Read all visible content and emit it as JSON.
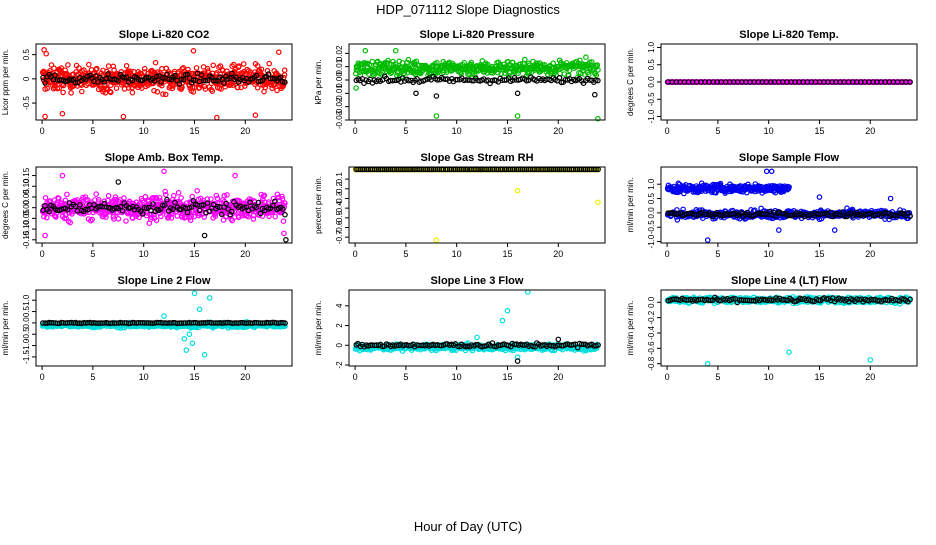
{
  "figure": {
    "title": "HDP_071112  Slope Diagnostics",
    "xlabel": "Hour of Day (UTC)"
  },
  "chart_data": [
    {
      "type": "scatter",
      "title": "Slope Li-820 CO2",
      "ylabel": "Licor ppm per min.",
      "xlim": [
        -0.6,
        24.6
      ],
      "ylim": [
        -0.85,
        0.72
      ],
      "xticks": [
        0,
        5,
        10,
        15,
        20
      ],
      "yticks": [
        -0.5,
        0,
        0.5
      ],
      "ytick_labels": [
        "-0.5",
        "0",
        "0.5"
      ],
      "series": [
        {
          "color": "#ff0000",
          "x_start": 0.05,
          "x_end": 23.9,
          "n": 620,
          "center": 0.0,
          "spread": 0.25,
          "outliers": [
            [
              0.2,
              0.6
            ],
            [
              0.4,
              0.52
            ],
            [
              0.3,
              -0.78
            ],
            [
              2.0,
              -0.72
            ],
            [
              8.0,
              -0.78
            ],
            [
              17.2,
              -0.8
            ],
            [
              21.0,
              -0.75
            ],
            [
              14.9,
              0.58
            ],
            [
              23.3,
              0.55
            ]
          ]
        },
        {
          "color": "#000000",
          "x_start": 0.1,
          "x_end": 23.9,
          "n": 120,
          "center": 0.0,
          "spread": 0.09,
          "outliers": []
        }
      ]
    },
    {
      "type": "scatter",
      "title": "Slope Li-820 Pressure",
      "ylabel": "kPa per min.",
      "xlim": [
        -0.6,
        24.6
      ],
      "ylim": [
        -0.03,
        0.027
      ],
      "xticks": [
        0,
        5,
        10,
        15,
        20
      ],
      "yticks": [
        -0.03,
        -0.02,
        -0.01,
        0.0,
        0.01,
        0.02
      ],
      "ytick_labels": [
        "-0.03",
        "-0.02",
        "-0.01",
        "0.00",
        "0.01",
        "0.02"
      ],
      "series": [
        {
          "color": "#00bb00",
          "x_start": 0.05,
          "x_end": 23.9,
          "n": 450,
          "center": 0.009,
          "spread": 0.0055,
          "outliers": [
            [
              0.1,
              -0.006
            ],
            [
              8.0,
              -0.027
            ],
            [
              16.0,
              -0.027
            ],
            [
              23.9,
              -0.029
            ],
            [
              1.0,
              0.022
            ],
            [
              4.0,
              0.022
            ]
          ]
        },
        {
          "color": "#000000",
          "x_start": 0.1,
          "x_end": 23.9,
          "n": 120,
          "center": 0.0,
          "spread": 0.002,
          "outliers": [
            [
              6.0,
              -0.01
            ],
            [
              8.0,
              -0.012
            ],
            [
              16.0,
              -0.01
            ],
            [
              23.6,
              -0.011
            ]
          ]
        }
      ]
    },
    {
      "type": "scatter",
      "title": "Slope Li-820 Temp.",
      "ylabel": "degrees C per min.",
      "xlim": [
        -0.6,
        24.6
      ],
      "ylim": [
        -1.1,
        1.1
      ],
      "xticks": [
        0,
        5,
        10,
        15,
        20
      ],
      "yticks": [
        -1.0,
        -0.5,
        0.0,
        0.5,
        1.0
      ],
      "ytick_labels": [
        "-1.0",
        "-0.5",
        "0.0",
        "0.5",
        "1.0"
      ],
      "series": [
        {
          "color": "#ff00ff",
          "x_start": 0.05,
          "x_end": 23.9,
          "n": 400,
          "center": 0.0,
          "spread": 0.0,
          "outliers": []
        },
        {
          "color": "#000000",
          "x_start": 0.1,
          "x_end": 23.9,
          "n": 60,
          "center": 0.0,
          "spread": 0.0,
          "outliers": []
        }
      ]
    },
    {
      "type": "scatter",
      "title": "Slope Amb. Box Temp.",
      "ylabel": "degrees C per min.",
      "xlim": [
        -0.6,
        24.6
      ],
      "ylim": [
        -0.165,
        0.19
      ],
      "xticks": [
        0,
        5,
        10,
        15,
        20
      ],
      "yticks": [
        -0.15,
        -0.1,
        -0.05,
        0.0,
        0.05,
        0.1,
        0.15
      ],
      "ytick_labels": [
        "-0.15",
        "-0.10",
        "-0.05",
        "0.00",
        "0.05",
        "0.10",
        "0.15"
      ],
      "series": [
        {
          "color": "#ff00ff",
          "x_start": 0.05,
          "x_end": 23.9,
          "n": 600,
          "center": 0.0,
          "spread": 0.055,
          "outliers": [
            [
              2.0,
              0.15
            ],
            [
              12.0,
              0.17
            ],
            [
              19.0,
              0.15
            ],
            [
              0.3,
              -0.13
            ],
            [
              23.8,
              -0.12
            ]
          ]
        },
        {
          "color": "#000000",
          "x_start": 0.1,
          "x_end": 23.9,
          "n": 120,
          "center": 0.0,
          "spread": 0.03,
          "outliers": [
            [
              7.5,
              0.12
            ],
            [
              16.0,
              -0.13
            ],
            [
              24.0,
              -0.15
            ]
          ]
        }
      ]
    },
    {
      "type": "scatter",
      "title": "Slope Gas Stream RH",
      "ylabel": "percent per min.",
      "xlim": [
        -0.6,
        24.6
      ],
      "ylim": [
        -0.76,
        0.025
      ],
      "xticks": [
        0,
        5,
        10,
        15,
        20
      ],
      "yticks": [
        -0.7,
        -0.6,
        -0.5,
        -0.4,
        -0.3,
        -0.2,
        -0.1
      ],
      "ytick_labels": [
        "-0.7",
        "-0.6",
        "-0.5",
        "-0.4",
        "-0.3",
        "-0.2",
        "-0.1"
      ],
      "series": [
        {
          "color": "#eeee00",
          "x_start": 0.05,
          "x_end": 23.9,
          "n": 400,
          "center": 0.0,
          "spread": 0.0,
          "outliers": [
            [
              8.0,
              -0.73
            ],
            [
              16.0,
              -0.22
            ],
            [
              23.9,
              -0.34
            ]
          ]
        },
        {
          "color": "#000000",
          "x_start": 0.1,
          "x_end": 23.9,
          "n": 120,
          "center": 0.0,
          "spread": 0.0,
          "outliers": []
        }
      ]
    },
    {
      "type": "scatter",
      "title": "Slope Sample Flow",
      "ylabel": "ml/min per min.",
      "xlim": [
        -0.6,
        24.6
      ],
      "ylim": [
        -1.05,
        1.6
      ],
      "xticks": [
        0,
        5,
        10,
        15,
        20
      ],
      "yticks": [
        -1.0,
        -0.5,
        0.0,
        0.5,
        1.0
      ],
      "ytick_labels": [
        "-1.0",
        "-0.5",
        "0.0",
        "0.5",
        "1.0"
      ],
      "series": [
        {
          "color": "#0000ee",
          "x_start": 0.05,
          "x_end": 12.0,
          "n": 260,
          "center": 0.85,
          "spread": 0.15,
          "outliers": [
            [
              9.8,
              1.45
            ],
            [
              10.3,
              1.45
            ],
            [
              4.0,
              -0.95
            ],
            [
              11.0,
              -0.6
            ]
          ]
        },
        {
          "color": "#0000ee",
          "x_start": 0.05,
          "x_end": 23.9,
          "n": 420,
          "center": -0.05,
          "spread": 0.14,
          "outliers": [
            [
              15.0,
              0.55
            ],
            [
              22.0,
              0.5
            ],
            [
              16.5,
              -0.6
            ]
          ]
        },
        {
          "color": "#000000",
          "x_start": 0.1,
          "x_end": 23.9,
          "n": 120,
          "center": -0.05,
          "spread": 0.08,
          "outliers": []
        }
      ]
    },
    {
      "type": "scatter",
      "title": "Slope Line 2 Flow",
      "ylabel": "ml/min per min.",
      "xlim": [
        -0.6,
        24.6
      ],
      "ylim": [
        -1.9,
        1.45
      ],
      "xticks": [
        0,
        5,
        10,
        15,
        20
      ],
      "yticks": [
        -1.5,
        -1.0,
        -0.5,
        0.0,
        0.5,
        1.0
      ],
      "ytick_labels": [
        "-1.5",
        "-1.0",
        "-0.5",
        "0.0",
        "0.5",
        "1.0"
      ],
      "series": [
        {
          "color": "#00dddd",
          "x_start": 0.05,
          "x_end": 23.9,
          "n": 520,
          "center": -0.1,
          "spread": 0.1,
          "outliers": [
            [
              14.2,
              -1.2
            ],
            [
              14.5,
              -0.5
            ],
            [
              15.0,
              1.3
            ],
            [
              15.5,
              0.6
            ],
            [
              14.8,
              -0.9
            ],
            [
              16.0,
              -1.4
            ],
            [
              15.2,
              -0.2
            ],
            [
              14.0,
              -0.7
            ],
            [
              16.5,
              1.1
            ],
            [
              12.0,
              0.3
            ]
          ]
        },
        {
          "color": "#000000",
          "x_start": 0.1,
          "x_end": 23.9,
          "n": 120,
          "center": 0.0,
          "spread": 0.02,
          "outliers": []
        }
      ]
    },
    {
      "type": "scatter",
      "title": "Slope Line 3 Flow",
      "ylabel": "ml/min per min.",
      "xlim": [
        -0.6,
        24.6
      ],
      "ylim": [
        -2.1,
        5.6
      ],
      "xticks": [
        0,
        5,
        10,
        15,
        20
      ],
      "yticks": [
        -2,
        0,
        2,
        4
      ],
      "ytick_labels": [
        "-2",
        "0",
        "2",
        "4"
      ],
      "series": [
        {
          "color": "#00dddd",
          "x_start": 0.05,
          "x_end": 23.9,
          "n": 520,
          "center": -0.2,
          "spread": 0.3,
          "outliers": [
            [
              15.0,
              3.5
            ],
            [
              14.5,
              2.5
            ],
            [
              17.0,
              5.4
            ],
            [
              16.0,
              -1.2
            ],
            [
              12.0,
              0.8
            ]
          ]
        },
        {
          "color": "#000000",
          "x_start": 0.1,
          "x_end": 23.9,
          "n": 120,
          "center": 0.0,
          "spread": 0.2,
          "outliers": [
            [
              16.0,
              -1.6
            ],
            [
              20.0,
              0.6
            ]
          ]
        }
      ]
    },
    {
      "type": "scatter",
      "title": "Slope Line 4 (LT) Flow",
      "ylabel": "ml/min per min.",
      "xlim": [
        -0.6,
        24.6
      ],
      "ylim": [
        -0.83,
        0.16
      ],
      "xticks": [
        0,
        5,
        10,
        15,
        20
      ],
      "yticks": [
        -0.8,
        -0.6,
        -0.4,
        -0.2,
        0.0
      ],
      "ytick_labels": [
        "-0.8",
        "-0.6",
        "-0.4",
        "-0.2",
        "0.0"
      ],
      "series": [
        {
          "color": "#00dddd",
          "x_start": 0.05,
          "x_end": 23.9,
          "n": 560,
          "center": 0.03,
          "spread": 0.035,
          "outliers": [
            [
              4.0,
              -0.8
            ],
            [
              12.0,
              -0.65
            ],
            [
              20.0,
              -0.75
            ]
          ]
        },
        {
          "color": "#000000",
          "x_start": 0.1,
          "x_end": 23.9,
          "n": 120,
          "center": 0.03,
          "spread": 0.025,
          "outliers": []
        }
      ]
    }
  ]
}
